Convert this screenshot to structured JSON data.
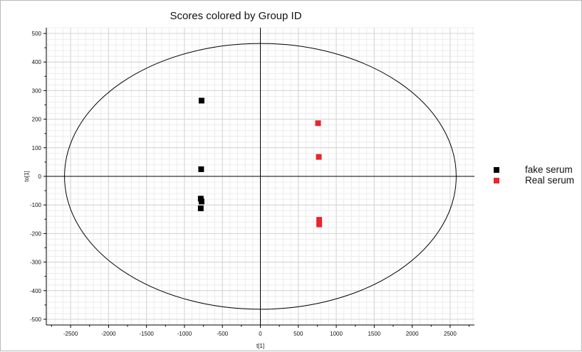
{
  "chart_data": {
    "type": "scatter",
    "title": "Scores colored by Group ID",
    "xlabel": "t[1]",
    "ylabel": "to[1]",
    "xlim": [
      -2820,
      2820
    ],
    "ylim": [
      -520,
      520
    ],
    "xticks": [
      -2500,
      -2000,
      -1500,
      -1000,
      -500,
      0,
      500,
      1000,
      1500,
      2000,
      2500
    ],
    "yticks": [
      -500,
      -400,
      -300,
      -200,
      -100,
      0,
      100,
      200,
      300,
      400,
      500
    ],
    "grid": true,
    "legend_position": "right",
    "ellipse": {
      "cx": 0,
      "cy": 0,
      "rx": 2580,
      "ry": 465
    },
    "series": [
      {
        "name": "fake serum",
        "color": "#000000",
        "marker": "square",
        "points": [
          {
            "x": -775,
            "y": 265
          },
          {
            "x": -780,
            "y": 25
          },
          {
            "x": -785,
            "y": -78
          },
          {
            "x": -775,
            "y": -88
          },
          {
            "x": -785,
            "y": -112
          }
        ]
      },
      {
        "name": "Real serum",
        "color": "#e8262b",
        "marker": "square",
        "points": [
          {
            "x": 760,
            "y": 186
          },
          {
            "x": 770,
            "y": 68
          },
          {
            "x": 775,
            "y": -152
          },
          {
            "x": 775,
            "y": -168
          }
        ]
      }
    ]
  }
}
